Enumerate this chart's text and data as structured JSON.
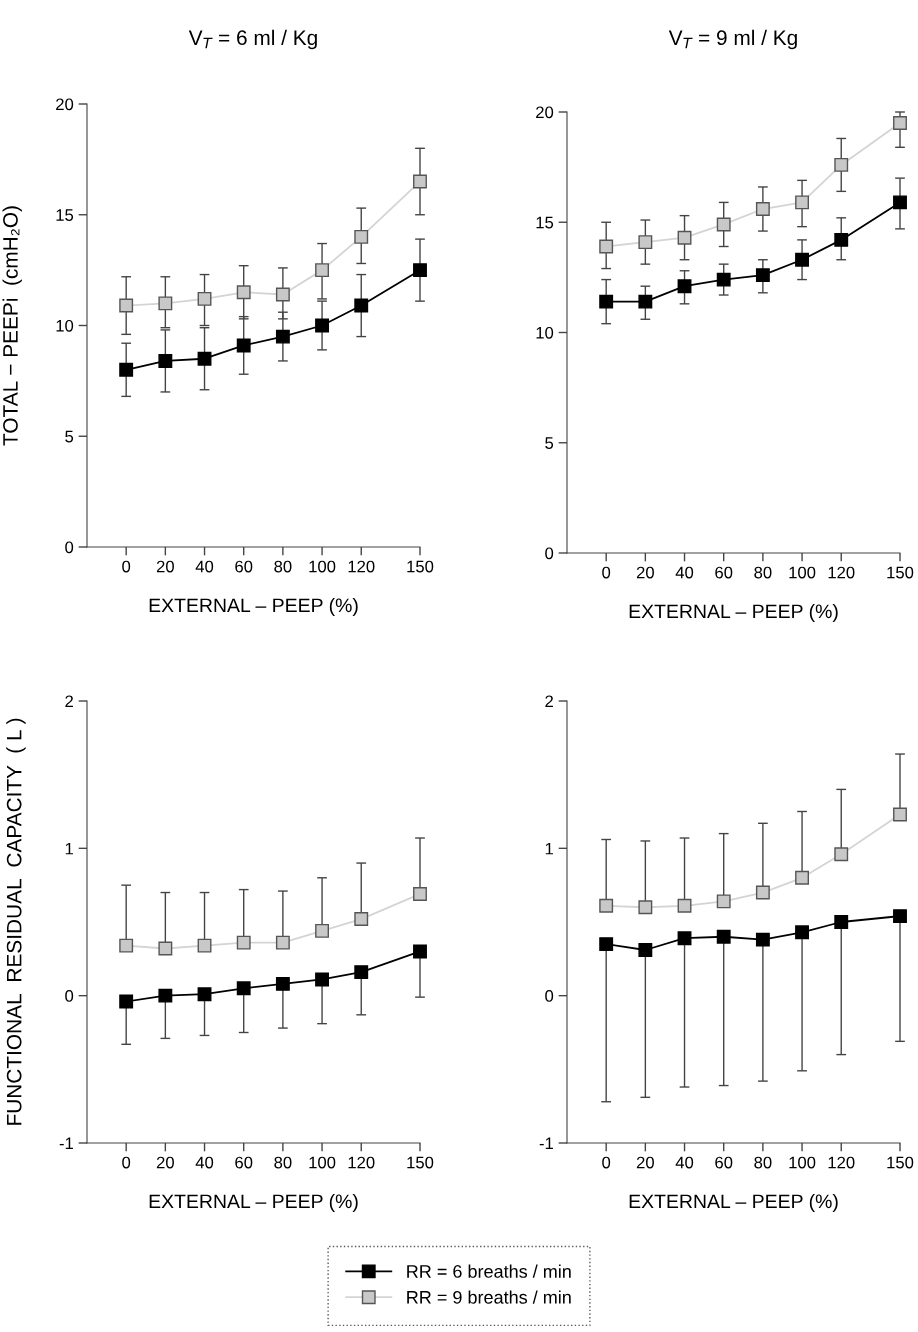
{
  "chart_data": [
    {
      "type": "line",
      "title": "V$_{T}$ = 6 ml / Kg",
      "ylabel": "TOTAL − PEEPi  (cmH₂O)",
      "xlabel": "EXTERNAL – PEEP (%)",
      "x": [
        0,
        20,
        40,
        60,
        80,
        100,
        120,
        150
      ],
      "xlim": [
        -20,
        150
      ],
      "xticks": [
        0,
        20,
        40,
        60,
        80,
        100,
        120,
        150
      ],
      "ylim": [
        0,
        20
      ],
      "yticks": [
        0,
        5,
        10,
        15,
        20
      ],
      "marker": "square",
      "grid": false,
      "series": [
        {
          "color": "#000000",
          "values": [
            8.0,
            8.4,
            8.5,
            9.1,
            9.5,
            10.0,
            10.9,
            12.5
          ],
          "errors": [
            [
              6.8,
              9.2
            ],
            [
              7.0,
              9.8
            ],
            [
              7.1,
              9.9
            ],
            [
              7.8,
              10.4
            ],
            [
              8.4,
              10.6
            ],
            [
              8.9,
              11.1
            ],
            [
              9.5,
              12.3
            ],
            [
              11.1,
              13.9
            ]
          ]
        },
        {
          "color": "#c8c8c8",
          "values": [
            10.9,
            11.0,
            11.2,
            11.5,
            11.4,
            12.5,
            14.0,
            16.5
          ],
          "errors": [
            [
              9.6,
              12.2
            ],
            [
              9.9,
              12.2
            ],
            [
              10.0,
              12.3
            ],
            [
              10.3,
              12.7
            ],
            [
              10.3,
              12.6
            ],
            [
              11.2,
              13.7
            ],
            [
              12.8,
              15.3
            ],
            [
              15.0,
              18.0
            ]
          ]
        }
      ]
    },
    {
      "type": "line",
      "title": "V$_{T}$ = 9 ml / Kg",
      "xlabel": "EXTERNAL – PEEP (%)",
      "x": [
        0,
        20,
        40,
        60,
        80,
        100,
        120,
        150
      ],
      "xlim": [
        -20,
        150
      ],
      "xticks": [
        0,
        20,
        40,
        60,
        80,
        100,
        120,
        150
      ],
      "ylim": [
        0,
        20
      ],
      "yticks": [
        0,
        5,
        10,
        15,
        20
      ],
      "marker": "square",
      "grid": false,
      "series": [
        {
          "color": "#000000",
          "values": [
            11.4,
            11.4,
            12.1,
            12.4,
            12.6,
            13.3,
            14.2,
            15.9
          ],
          "errors": [
            [
              10.4,
              12.4
            ],
            [
              10.6,
              12.1
            ],
            [
              11.3,
              12.8
            ],
            [
              11.7,
              13.1
            ],
            [
              11.8,
              13.3
            ],
            [
              12.4,
              14.2
            ],
            [
              13.3,
              15.2
            ],
            [
              14.7,
              17.0
            ]
          ]
        },
        {
          "color": "#c8c8c8",
          "values": [
            13.9,
            14.1,
            14.3,
            14.9,
            15.6,
            15.9,
            17.6,
            19.5
          ],
          "errors": [
            [
              12.9,
              15.0
            ],
            [
              13.1,
              15.1
            ],
            [
              13.3,
              15.3
            ],
            [
              13.9,
              15.9
            ],
            [
              14.6,
              16.6
            ],
            [
              14.8,
              16.9
            ],
            [
              16.4,
              18.8
            ],
            [
              18.4,
              20.0
            ]
          ]
        }
      ]
    },
    {
      "type": "line",
      "ylabel": "FUNCTIONAL  RESIDUAL  CAPACITY  ( L )",
      "xlabel": "EXTERNAL – PEEP (%)",
      "x": [
        0,
        20,
        40,
        60,
        80,
        100,
        120,
        150
      ],
      "xlim": [
        -20,
        150
      ],
      "xticks": [
        0,
        20,
        40,
        60,
        80,
        100,
        120,
        150
      ],
      "ylim": [
        -1,
        2
      ],
      "yticks": [
        -1,
        0,
        1,
        2
      ],
      "marker": "square",
      "grid": false,
      "series": [
        {
          "color": "#000000",
          "values": [
            -0.04,
            0.0,
            0.01,
            0.05,
            0.08,
            0.11,
            0.16,
            0.3
          ],
          "errors": [
            [
              -0.33,
              -0.04
            ],
            [
              -0.29,
              0.0
            ],
            [
              -0.27,
              0.01
            ],
            [
              -0.25,
              0.05
            ],
            [
              -0.22,
              0.08
            ],
            [
              -0.19,
              0.11
            ],
            [
              -0.13,
              0.16
            ],
            [
              -0.01,
              0.3
            ]
          ]
        },
        {
          "color": "#c8c8c8",
          "values": [
            0.34,
            0.32,
            0.34,
            0.36,
            0.36,
            0.44,
            0.52,
            0.69
          ],
          "errors": [
            [
              0.34,
              0.75
            ],
            [
              0.32,
              0.7
            ],
            [
              0.34,
              0.7
            ],
            [
              0.36,
              0.72
            ],
            [
              0.36,
              0.71
            ],
            [
              0.44,
              0.8
            ],
            [
              0.52,
              0.9
            ],
            [
              0.69,
              1.07
            ]
          ]
        }
      ]
    },
    {
      "type": "line",
      "xlabel": "EXTERNAL – PEEP (%)",
      "x": [
        0,
        20,
        40,
        60,
        80,
        100,
        120,
        150
      ],
      "xlim": [
        -20,
        150
      ],
      "xticks": [
        0,
        20,
        40,
        60,
        80,
        100,
        120,
        150
      ],
      "ylim": [
        -1,
        2
      ],
      "yticks": [
        -1,
        0,
        1,
        2
      ],
      "marker": "square",
      "grid": false,
      "legend": "bottom",
      "series": [
        {
          "name": "RR = 6 breaths / min",
          "color": "#000000",
          "values": [
            0.35,
            0.31,
            0.39,
            0.4,
            0.38,
            0.43,
            0.5,
            0.54
          ],
          "errors": [
            [
              -0.72,
              0.35
            ],
            [
              -0.69,
              0.31
            ],
            [
              -0.62,
              0.39
            ],
            [
              -0.61,
              0.4
            ],
            [
              -0.58,
              0.38
            ],
            [
              -0.51,
              0.43
            ],
            [
              -0.4,
              0.5
            ],
            [
              -0.31,
              0.54
            ]
          ]
        },
        {
          "name": "RR = 9 breaths / min",
          "color": "#c8c8c8",
          "values": [
            0.61,
            0.6,
            0.61,
            0.64,
            0.7,
            0.8,
            0.96,
            1.23
          ],
          "errors": [
            [
              0.61,
              1.06
            ],
            [
              0.6,
              1.05
            ],
            [
              0.61,
              1.07
            ],
            [
              0.64,
              1.1
            ],
            [
              0.7,
              1.17
            ],
            [
              0.8,
              1.25
            ],
            [
              0.96,
              1.4
            ],
            [
              1.23,
              1.64
            ]
          ]
        }
      ]
    }
  ]
}
